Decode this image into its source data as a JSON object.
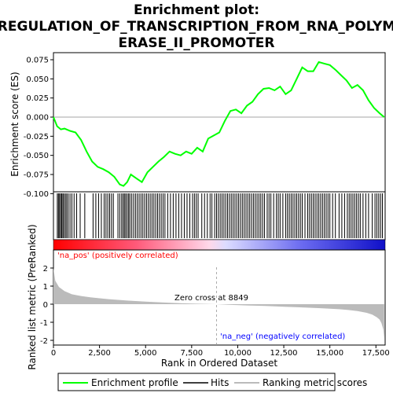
{
  "chart_data": {
    "type": "line",
    "title_line1": "Enrichment plot:",
    "title_line2": "REGULATION_OF_TRANSCRIPTION_FROM_RNA_POLYM",
    "title_line3": "ERASE_II_PROMOTER",
    "top_panel": {
      "ylabel": "Enrichment score (ES)",
      "ylim": [
        -0.1,
        0.08
      ],
      "yticks": [
        0.075,
        0.05,
        0.025,
        0.0,
        -0.025,
        -0.05,
        -0.075,
        -0.1
      ],
      "ytick_labels": [
        "0.075",
        "0.050",
        "0.025",
        "0.000",
        "-0.025",
        "-0.050",
        "-0.075",
        "-0.100"
      ],
      "series": [
        {
          "name": "Enrichment profile",
          "color": "#00ff00",
          "x": [
            0,
            200,
            400,
            600,
            900,
            1200,
            1500,
            1800,
            2100,
            2400,
            2700,
            3000,
            3300,
            3600,
            3800,
            4000,
            4200,
            4500,
            4800,
            5100,
            5400,
            5700,
            6000,
            6300,
            6600,
            6900,
            7200,
            7500,
            7800,
            8100,
            8400,
            8700,
            9000,
            9300,
            9600,
            9900,
            10200,
            10500,
            10800,
            11100,
            11400,
            11700,
            12000,
            12300,
            12600,
            12900,
            13200,
            13500,
            13800,
            14100,
            14400,
            14700,
            15000,
            15300,
            15600,
            15900,
            16200,
            16500,
            16800,
            17100,
            17400,
            17700,
            17950
          ],
          "y": [
            0.0,
            -0.012,
            -0.016,
            -0.015,
            -0.018,
            -0.02,
            -0.03,
            -0.045,
            -0.058,
            -0.065,
            -0.068,
            -0.072,
            -0.078,
            -0.088,
            -0.09,
            -0.085,
            -0.075,
            -0.08,
            -0.085,
            -0.072,
            -0.065,
            -0.058,
            -0.052,
            -0.045,
            -0.048,
            -0.05,
            -0.045,
            -0.048,
            -0.04,
            -0.045,
            -0.028,
            -0.024,
            -0.02,
            -0.005,
            0.008,
            0.01,
            0.005,
            0.015,
            0.02,
            0.03,
            0.037,
            0.038,
            0.035,
            0.04,
            0.03,
            0.035,
            0.05,
            0.065,
            0.06,
            0.06,
            0.072,
            0.07,
            0.068,
            0.062,
            0.055,
            0.048,
            0.038,
            0.042,
            0.035,
            0.022,
            0.012,
            0.005,
            0.0
          ]
        }
      ],
      "hits": [
        210,
        270,
        330,
        390,
        450,
        510,
        570,
        650,
        720,
        800,
        900,
        1000,
        1120,
        1260,
        1450,
        1700,
        2150,
        2300,
        2450,
        2600,
        2750,
        2850,
        2950,
        3050,
        3150,
        3250,
        3500,
        3600,
        3700,
        3780,
        3850,
        3920,
        4000,
        4080,
        4150,
        4250,
        4350,
        4450,
        4550,
        4650,
        4750,
        4850,
        4950,
        5050,
        5150,
        5250,
        5350,
        5450,
        5550,
        5650,
        5750,
        5850,
        5950,
        6050,
        6200,
        6350,
        6500,
        6650,
        6800,
        6950,
        7100,
        7250,
        7400,
        7550,
        7650,
        7750,
        7850,
        8050,
        8200,
        8350,
        8500,
        8600,
        8750,
        8850,
        8950,
        9050,
        9150,
        9250,
        9350,
        9450,
        9550,
        9650,
        9750,
        9850,
        9950,
        10050,
        10150,
        10250,
        10350,
        10450,
        10550,
        10650,
        10750,
        10850,
        10950,
        11050,
        11150,
        11250,
        11350,
        11450,
        11600,
        11700,
        11800,
        11950,
        12100,
        12200,
        12300,
        12450,
        12600,
        12700,
        12800,
        12900,
        13000,
        13100,
        13200,
        13300,
        13400,
        13500,
        13650,
        13800,
        13900,
        14000,
        14100,
        14200,
        14300,
        14400,
        14500,
        14600,
        14700,
        14800,
        14900,
        15000,
        15150,
        15300,
        15500,
        15650,
        15800,
        15950,
        16050,
        16150,
        16250,
        16350,
        16450,
        16550,
        16650,
        16800,
        16950,
        17100,
        17300,
        17450,
        17550,
        17650,
        17750,
        17850
      ]
    },
    "bottom_panel": {
      "ylabel": "Ranked list metric (PreRanked)",
      "xlabel": "Rank in Ordered Dataset",
      "ylim": [
        -2.2,
        2.4
      ],
      "yticks": [
        2,
        1,
        0,
        -1,
        -2
      ],
      "ytick_labels": [
        "2",
        "1",
        "0",
        "-1",
        "-2"
      ],
      "xlim": [
        0,
        18000
      ],
      "xticks": [
        0,
        2500,
        5000,
        7500,
        10000,
        12500,
        15000,
        17500
      ],
      "xtick_labels": [
        "0",
        "2,500",
        "5,000",
        "7,500",
        "10,000",
        "12,500",
        "15,000",
        "17,500"
      ],
      "metric_x": [
        0,
        100,
        300,
        600,
        1000,
        1500,
        2000,
        3000,
        4000,
        5000,
        6000,
        7000,
        8000,
        8849,
        9500,
        10500,
        11500,
        12500,
        13500,
        14500,
        15500,
        16000,
        16500,
        17000,
        17300,
        17550,
        17700,
        17800,
        17900,
        17950
      ],
      "metric_y": [
        2.0,
        1.3,
        0.95,
        0.72,
        0.55,
        0.45,
        0.38,
        0.28,
        0.2,
        0.14,
        0.09,
        0.05,
        0.02,
        0.0,
        -0.03,
        -0.07,
        -0.1,
        -0.14,
        -0.18,
        -0.22,
        -0.28,
        -0.32,
        -0.38,
        -0.48,
        -0.58,
        -0.72,
        -0.85,
        -1.05,
        -1.4,
        -1.9
      ],
      "zero_cross_label": "Zero cross at 8849",
      "zero_cross_x": 8849,
      "pos_label": "'na_pos' (positively correlated)",
      "neg_label": "'na_neg' (negatively correlated)"
    },
    "legend": [
      {
        "label": "Enrichment profile",
        "color": "#00ff00"
      },
      {
        "label": "Hits",
        "color": "#000000"
      },
      {
        "label": "Ranking metric scores",
        "color": "#bbbbbb"
      }
    ]
  }
}
